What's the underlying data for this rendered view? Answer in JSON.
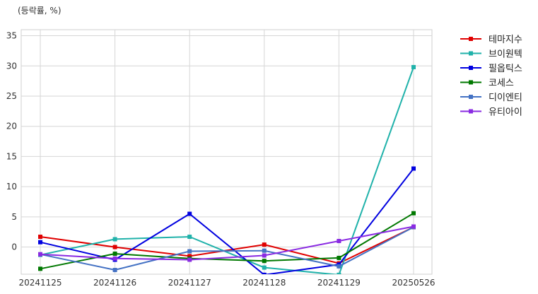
{
  "chart_data": {
    "type": "line",
    "unit_label": "(등락률, %)",
    "categories": [
      "20241125",
      "20241126",
      "20241127",
      "20241128",
      "20241129",
      "20250526"
    ],
    "ylim": [
      -4.5,
      36
    ],
    "yticks": [
      0,
      5,
      10,
      15,
      20,
      25,
      30,
      35
    ],
    "grid": true,
    "legend_position": "outside-top-right",
    "series": [
      {
        "name": "테마지수",
        "color": "#e00000",
        "values": [
          1.7,
          0.0,
          -1.5,
          0.4,
          -2.7,
          3.3
        ]
      },
      {
        "name": "브이원텍",
        "color": "#20b2aa",
        "values": [
          -1.3,
          1.3,
          1.7,
          -3.4,
          -4.6,
          29.8
        ]
      },
      {
        "name": "필옵틱스",
        "color": "#0000e0",
        "values": [
          0.8,
          -2.1,
          5.5,
          -4.6,
          -2.9,
          13.0
        ]
      },
      {
        "name": "코세스",
        "color": "#007800",
        "values": [
          -3.6,
          -1.1,
          -1.9,
          -2.3,
          -1.8,
          5.6
        ]
      },
      {
        "name": "디이엔티",
        "color": "#4472c4",
        "values": [
          -1.2,
          -3.8,
          -0.7,
          -0.6,
          -3.2,
          3.3
        ]
      },
      {
        "name": "유티아이",
        "color": "#8a2be2",
        "values": [
          -1.2,
          -1.9,
          -2.1,
          -1.4,
          1.0,
          3.4
        ]
      }
    ]
  }
}
